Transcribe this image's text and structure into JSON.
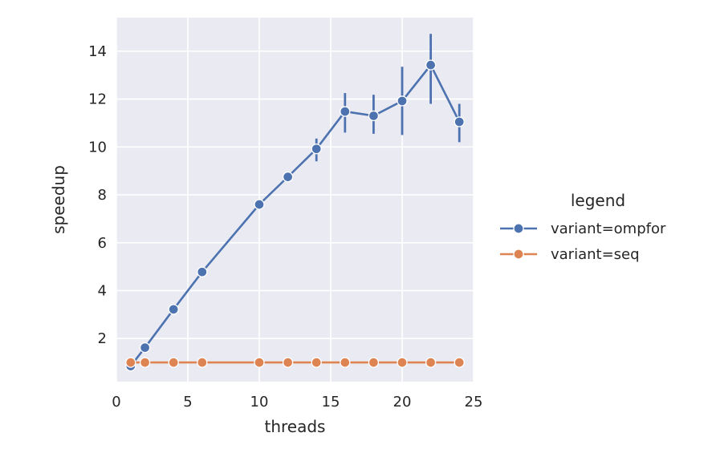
{
  "chart_data": {
    "type": "line",
    "title": "",
    "xlabel": "threads",
    "ylabel": "speedup",
    "xlim": [
      0,
      25
    ],
    "ylim": [
      0.2,
      15.4
    ],
    "xticks": [
      0,
      5,
      10,
      15,
      20,
      25
    ],
    "yticks": [
      2,
      4,
      6,
      8,
      10,
      12,
      14
    ],
    "grid": true,
    "legend": {
      "title": "legend",
      "placement": "right"
    },
    "series": [
      {
        "name": "variant=ompfor",
        "color": "#4c72b0",
        "x": [
          1,
          2,
          4,
          6,
          10,
          12,
          14,
          16,
          18,
          20,
          22,
          24
        ],
        "y": [
          0.85,
          1.62,
          3.22,
          4.78,
          7.6,
          8.75,
          9.92,
          11.48,
          11.3,
          11.92,
          13.42,
          11.05
        ],
        "err_low": [
          0.85,
          1.62,
          3.22,
          4.78,
          7.6,
          8.75,
          9.4,
          10.6,
          10.55,
          10.5,
          11.8,
          10.2
        ],
        "err_high": [
          0.85,
          1.62,
          3.22,
          4.78,
          7.6,
          8.75,
          10.35,
          12.25,
          12.18,
          13.35,
          14.72,
          11.8
        ]
      },
      {
        "name": "variant=seq",
        "color": "#dd8452",
        "x": [
          1,
          2,
          4,
          6,
          10,
          12,
          14,
          16,
          18,
          20,
          22,
          24
        ],
        "y": [
          1,
          1,
          1,
          1,
          1,
          1,
          1,
          1,
          1,
          1,
          1,
          1
        ]
      }
    ]
  }
}
